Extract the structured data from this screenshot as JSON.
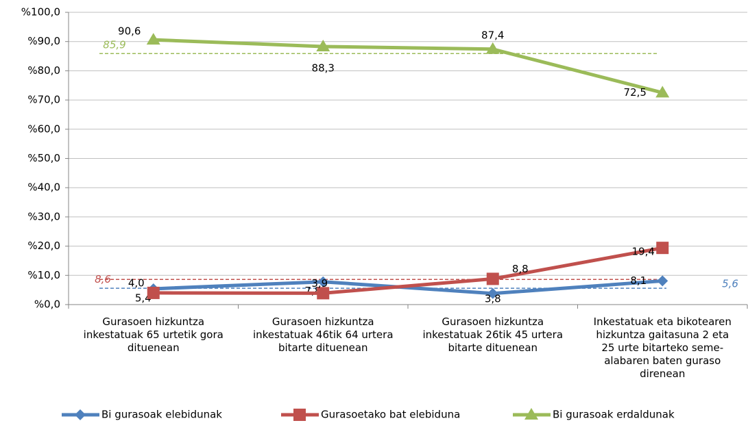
{
  "chart_data": {
    "type": "line",
    "categories": [
      "Gurasoen hizkuntza inkestatuak 65 urtetik gora dituenean",
      "Gurasoen hizkuntza inkestatuak 46tik 64 urtera bitarte dituenean",
      "Gurasoen hizkuntza inkestatuak 26tik 45 urtera bitarte dituenean",
      "Inkestatuak eta bikotearen hizkuntza gaitasuna 2 eta 25 urte bitarteko seme-alabaren baten guraso direnean"
    ],
    "series": [
      {
        "name": "Bi gurasoak elebidunak",
        "color": "#4f81bd",
        "marker": "diamond",
        "values": [
          5.4,
          7.8,
          3.8,
          8.1
        ],
        "value_labels": [
          "5,4",
          "7,8",
          "3,8",
          "8,1"
        ],
        "average": 5.6,
        "average_label": "5,6"
      },
      {
        "name": "Gurasoetako bat elebiduna",
        "color": "#c0504d",
        "marker": "square",
        "values": [
          4.0,
          3.9,
          8.8,
          19.4
        ],
        "value_labels": [
          "4,0",
          "3,9",
          "8,8",
          "19,4"
        ],
        "average": 8.6,
        "average_label": "8,6"
      },
      {
        "name": "Bi gurasoak erdaldunak",
        "color": "#9bbb59",
        "marker": "triangle",
        "values": [
          90.6,
          88.3,
          87.4,
          72.5
        ],
        "value_labels": [
          "90,6",
          "88,3",
          "87,4",
          "72,5"
        ],
        "average": 85.9,
        "average_label": "85,9"
      }
    ],
    "ylim": [
      0,
      100
    ],
    "yticks": [
      {
        "value": 0,
        "label": "%0,0"
      },
      {
        "value": 10,
        "label": "%10,0"
      },
      {
        "value": 20,
        "label": "%20,0"
      },
      {
        "value": 30,
        "label": "%30,0"
      },
      {
        "value": 40,
        "label": "%40,0"
      },
      {
        "value": 50,
        "label": "%50,0"
      },
      {
        "value": 60,
        "label": "%60,0"
      },
      {
        "value": 70,
        "label": "%70,0"
      },
      {
        "value": 80,
        "label": "%80,0"
      },
      {
        "value": 90,
        "label": "%90,0"
      },
      {
        "value": 100,
        "label": "%100,0"
      }
    ],
    "grid": true,
    "legend": "bottom"
  }
}
